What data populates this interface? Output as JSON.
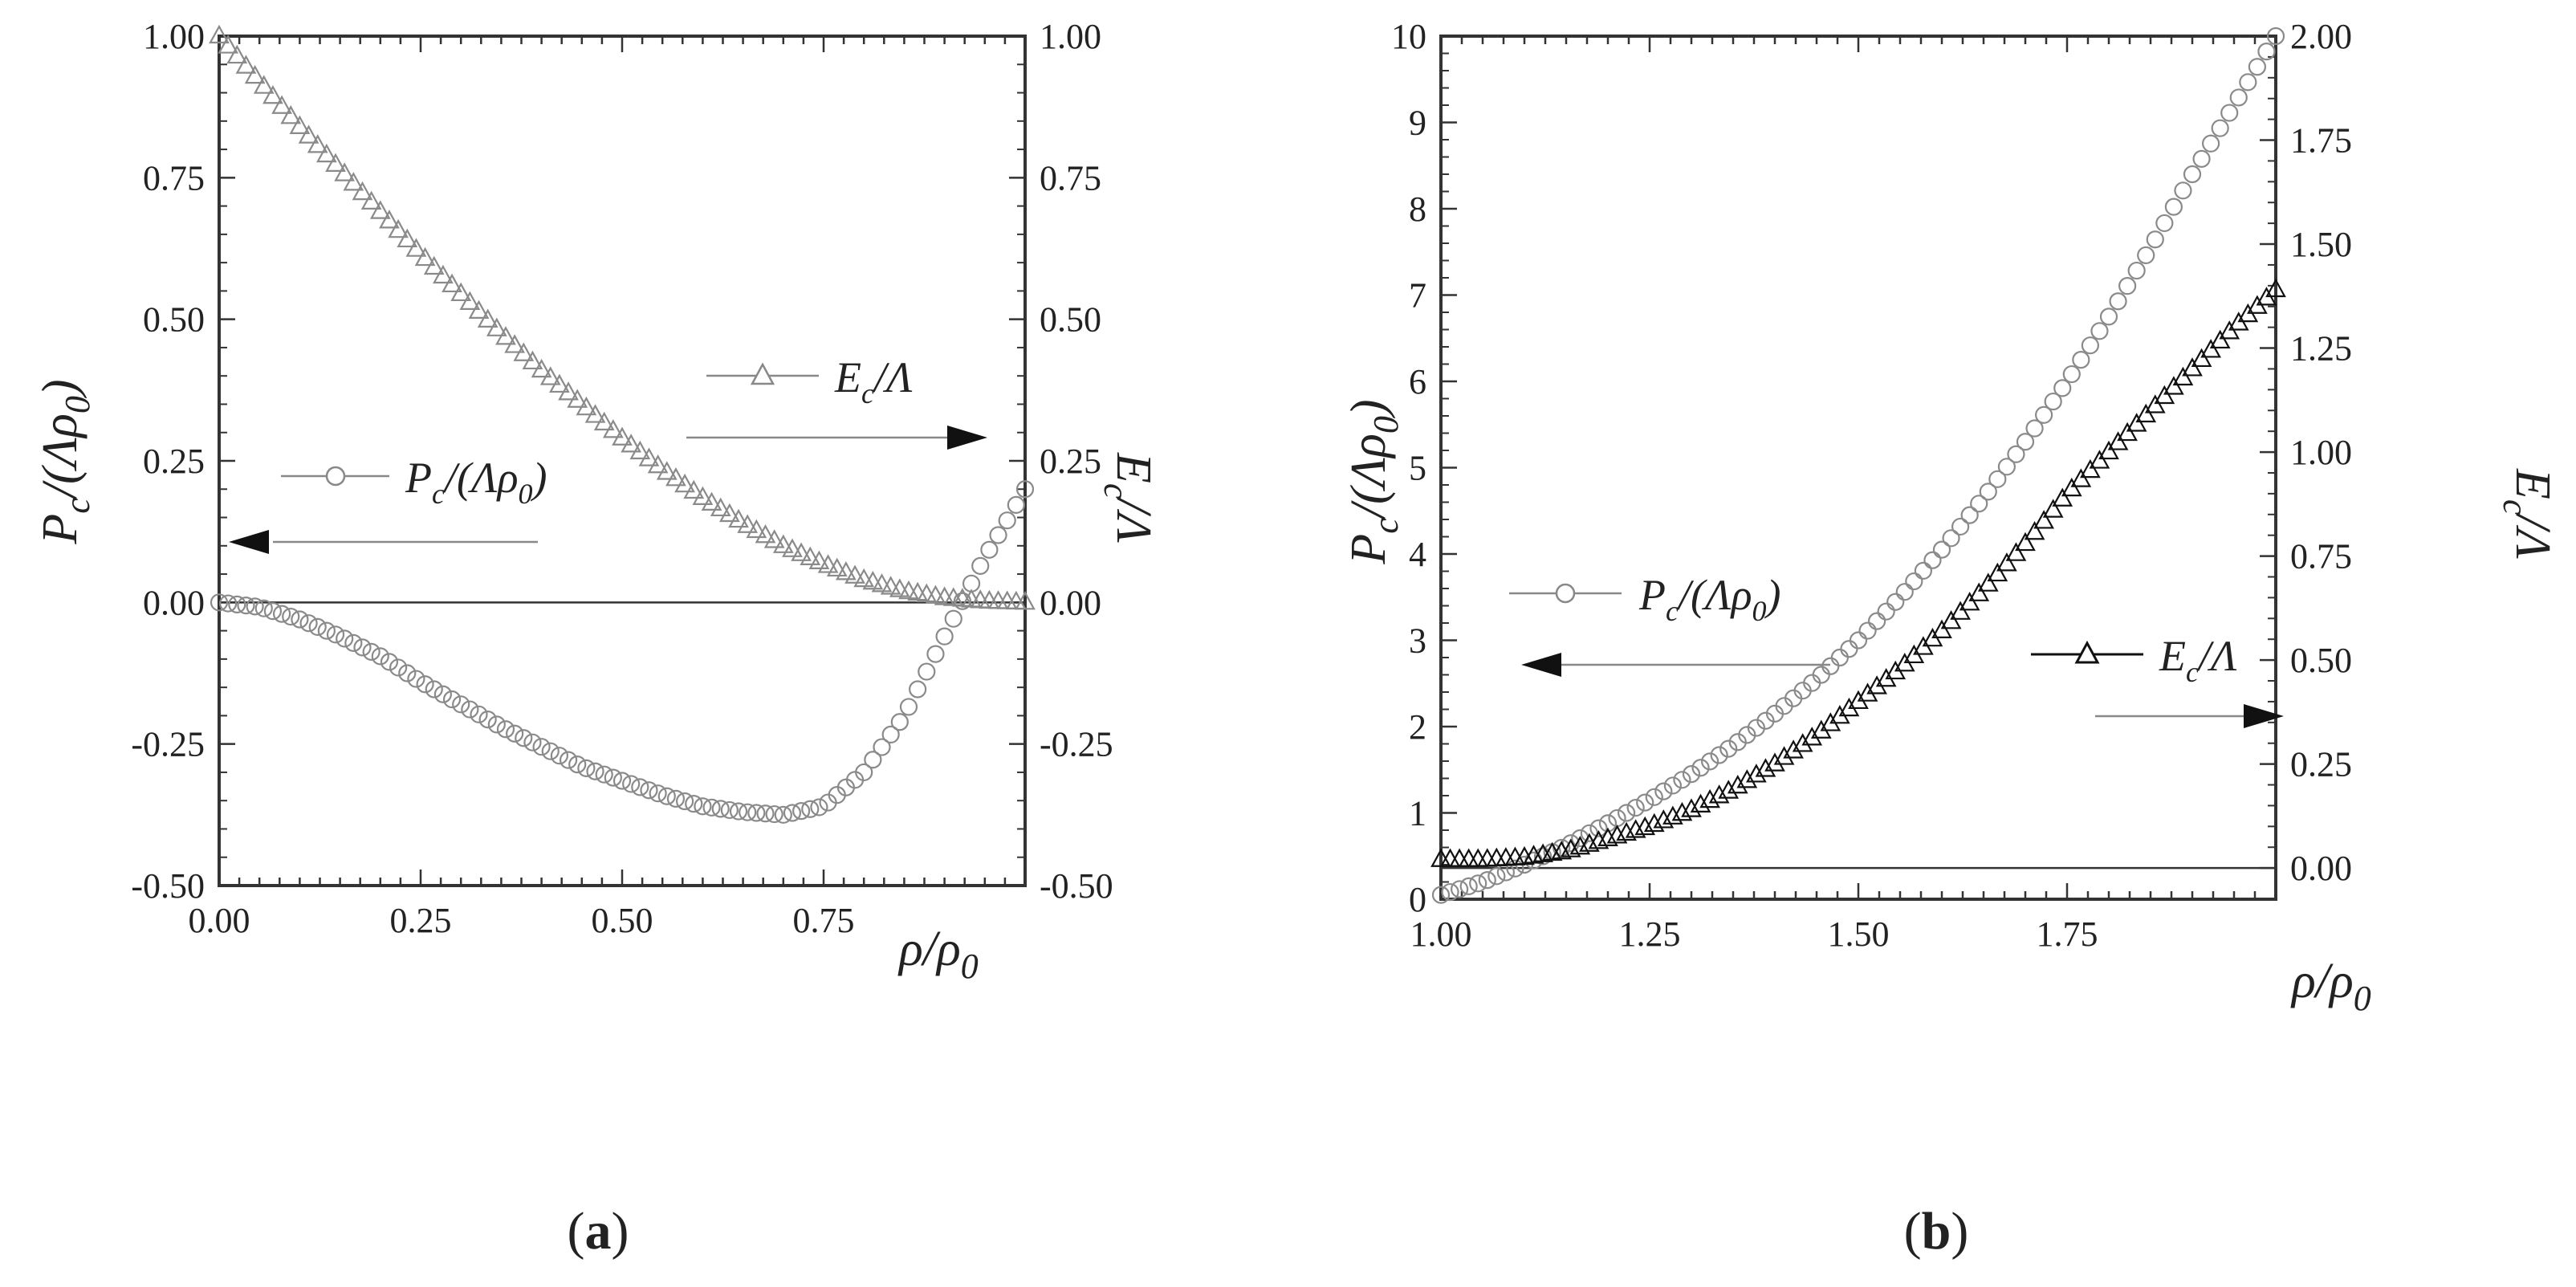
{
  "figure": {
    "panel_labels": [
      {
        "open": "(",
        "letter": "a",
        "close": ")"
      },
      {
        "open": "(",
        "letter": "b",
        "close": ")"
      }
    ]
  },
  "chart_data": [
    {
      "type": "scatter",
      "panel": "a",
      "title": "",
      "xlabel": "ρ/ρ0",
      "ylabel_left": "Pc/(Λρ0)",
      "ylabel_right": "Ec/Λ",
      "xlim": [
        0.0,
        1.0
      ],
      "ylim_left": [
        -0.5,
        1.0
      ],
      "ylim_right": [
        -0.5,
        1.0
      ],
      "x_ticks": [
        "0.00",
        "0.25",
        "0.50",
        "0.75"
      ],
      "y_left_ticks": [
        "-0.50",
        "-0.25",
        "0.00",
        "0.25",
        "0.50",
        "0.75",
        "1.00"
      ],
      "y_right_ticks": [
        "-0.50",
        "-0.25",
        "0.00",
        "0.25",
        "0.50",
        "0.75",
        "1.00"
      ],
      "reference_line_y": 0.0,
      "legend": [
        {
          "label": "Pc/(Λρ0)",
          "marker": "circle",
          "arrow": "left"
        },
        {
          "label": "Ec/Λ",
          "marker": "triangle",
          "arrow": "right"
        }
      ],
      "series": [
        {
          "name": "Pc/(Λρ0)",
          "axis": "left",
          "marker": "circle",
          "x": [
            0.0,
            0.05,
            0.1,
            0.15,
            0.2,
            0.25,
            0.3,
            0.35,
            0.4,
            0.45,
            0.5,
            0.55,
            0.6,
            0.65,
            0.7,
            0.75,
            0.8,
            0.85,
            0.9,
            0.95,
            0.98,
            1.0
          ],
          "y": [
            0.0,
            -0.008,
            -0.03,
            -0.06,
            -0.095,
            -0.14,
            -0.18,
            -0.22,
            -0.255,
            -0.29,
            -0.315,
            -0.34,
            -0.36,
            -0.37,
            -0.375,
            -0.36,
            -0.3,
            -0.2,
            -0.06,
            0.08,
            0.15,
            0.2
          ]
        },
        {
          "name": "Ec/Λ",
          "axis": "right",
          "marker": "triangle",
          "x": [
            0.0,
            0.05,
            0.1,
            0.15,
            0.2,
            0.25,
            0.3,
            0.35,
            0.4,
            0.45,
            0.5,
            0.55,
            0.6,
            0.65,
            0.7,
            0.75,
            0.8,
            0.85,
            0.9,
            0.95,
            1.0
          ],
          "y": [
            1.0,
            0.92,
            0.84,
            0.765,
            0.69,
            0.615,
            0.545,
            0.475,
            0.41,
            0.35,
            0.29,
            0.235,
            0.185,
            0.14,
            0.1,
            0.068,
            0.04,
            0.02,
            0.008,
            0.002,
            0.0
          ]
        }
      ]
    },
    {
      "type": "scatter",
      "panel": "b",
      "title": "",
      "xlabel": "ρ/ρ0",
      "ylabel_left": "Pc/(Λρ0)",
      "ylabel_right": "Ec/Λ",
      "xlim": [
        1.0,
        2.0
      ],
      "ylim_left": [
        0,
        10
      ],
      "ylim_right": [
        -0.075,
        2.0
      ],
      "x_ticks": [
        "1.00",
        "1.25",
        "1.50",
        "1.75"
      ],
      "y_left_ticks": [
        "0",
        "1",
        "2",
        "3",
        "4",
        "5",
        "6",
        "7",
        "8",
        "9",
        "10"
      ],
      "y_right_ticks": [
        "0.00",
        "0.25",
        "0.50",
        "0.75",
        "1.00",
        "1.25",
        "1.50",
        "1.75",
        "2.00"
      ],
      "reference_line_y_right": 0.0,
      "legend": [
        {
          "label": "Pc/(Λρ0)",
          "marker": "circle",
          "arrow": "left"
        },
        {
          "label": "Ec/Λ",
          "marker": "triangle",
          "arrow": "right"
        }
      ],
      "series": [
        {
          "name": "Pc/(Λρ0)",
          "axis": "left",
          "marker": "circle",
          "x": [
            1.0,
            1.05,
            1.1,
            1.15,
            1.2,
            1.25,
            1.3,
            1.35,
            1.4,
            1.45,
            1.5,
            1.55,
            1.6,
            1.65,
            1.7,
            1.75,
            1.8,
            1.85,
            1.9,
            1.95,
            2.0
          ],
          "y": [
            0.05,
            0.2,
            0.4,
            0.62,
            0.88,
            1.15,
            1.45,
            1.78,
            2.15,
            2.55,
            3.0,
            3.5,
            4.05,
            4.65,
            5.3,
            6.0,
            6.75,
            7.55,
            8.4,
            9.2,
            10.0
          ]
        },
        {
          "name": "Ec/Λ",
          "axis": "right",
          "marker": "triangle",
          "x": [
            1.0,
            1.05,
            1.1,
            1.15,
            1.2,
            1.25,
            1.3,
            1.35,
            1.4,
            1.45,
            1.5,
            1.55,
            1.6,
            1.65,
            1.7,
            1.75,
            1.8,
            1.85,
            1.9,
            1.95,
            2.0
          ],
          "y": [
            0.02,
            0.02,
            0.025,
            0.04,
            0.07,
            0.1,
            0.14,
            0.19,
            0.25,
            0.32,
            0.4,
            0.48,
            0.57,
            0.67,
            0.78,
            0.9,
            1.0,
            1.1,
            1.2,
            1.3,
            1.39
          ]
        }
      ]
    }
  ]
}
